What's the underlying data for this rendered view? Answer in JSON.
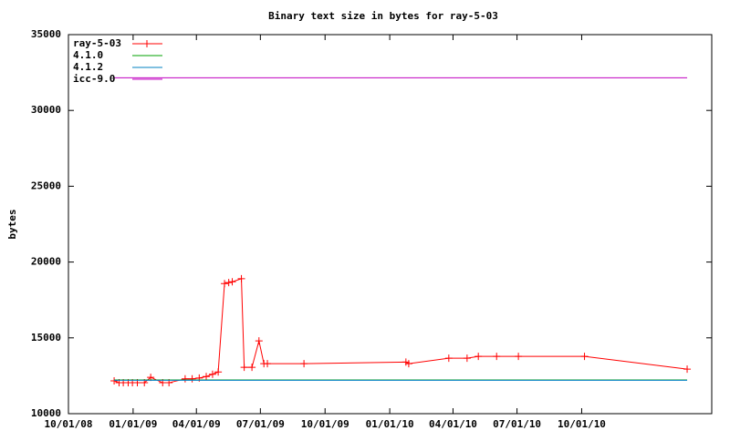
{
  "chart_data": {
    "type": "line",
    "title": "Binary text size in bytes for ray-5-03",
    "y_label": "bytes",
    "xlim": [
      "10/01/08",
      "04/04/11"
    ],
    "xticks": [
      "10/01/08",
      "01/01/09",
      "04/01/09",
      "07/01/09",
      "10/01/09",
      "01/01/10",
      "04/01/10",
      "07/01/10",
      "10/01/10"
    ],
    "ylim": [
      10000,
      35000
    ],
    "yticks": [
      10000,
      15000,
      20000,
      25000,
      30000,
      35000
    ],
    "legend": "top-left",
    "series": [
      {
        "name": "ray-5-03",
        "color": "#ff0000",
        "markers": true,
        "x": [
          "12/05/08",
          "12/12/08",
          "12/18/08",
          "12/25/08",
          "12/31/08",
          "01/07/09",
          "01/17/09",
          "01/26/09",
          "02/12/09",
          "02/21/09",
          "03/16/09",
          "03/26/09",
          "04/05/09",
          "04/15/09",
          "04/24/09",
          "05/02/09",
          "05/11/09",
          "05/17/09",
          "05/22/09",
          "06/04/09",
          "06/08/09",
          "06/19/09",
          "06/29/09",
          "07/06/09",
          "07/11/09",
          "09/01/09",
          "01/24/10",
          "01/28/10",
          "03/26/10",
          "04/21/10",
          "05/07/10",
          "06/02/10",
          "07/03/10",
          "10/05/10",
          "02/28/11"
        ],
        "values": [
          12160,
          12040,
          12040,
          12040,
          12040,
          12040,
          12040,
          12400,
          12040,
          12040,
          12300,
          12300,
          12350,
          12450,
          12600,
          12750,
          18580,
          18650,
          18700,
          18900,
          13060,
          13060,
          14800,
          13300,
          13300,
          13300,
          13400,
          13300,
          13660,
          13660,
          13780,
          13780,
          13780,
          13780,
          12940
        ]
      },
      {
        "name": "4.1.0",
        "color": "#00a000",
        "markers": false,
        "x": [
          "12/05/08",
          "02/28/11"
        ],
        "values": [
          12220,
          12220
        ]
      },
      {
        "name": "4.1.2",
        "color": "#0080c0",
        "markers": false,
        "x": [
          "12/05/08",
          "02/28/11"
        ],
        "values": [
          12200,
          12200
        ]
      },
      {
        "name": "icc-9.0",
        "color": "#c000c0",
        "markers": false,
        "x": [
          "12/05/08",
          "02/28/11"
        ],
        "values": [
          32150,
          32150
        ]
      }
    ]
  }
}
